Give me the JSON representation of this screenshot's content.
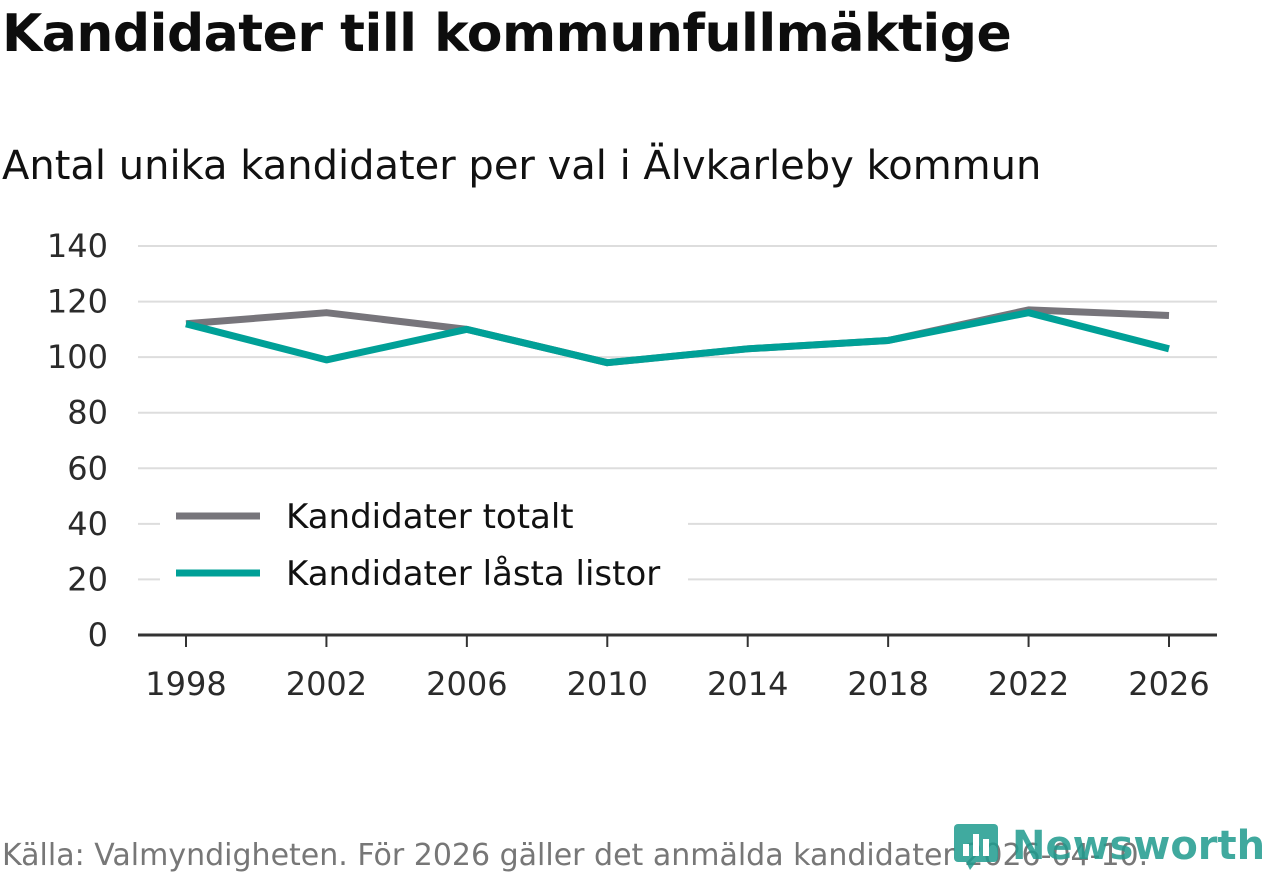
{
  "title": "Kandidater till kommunfullmäktige",
  "subtitle": "Antal unika kandidater per val i Älvkarleby kommun",
  "footer": "Källa: Valmyndigheten. För 2026 gäller det anmälda kandidater 2026-04-10.",
  "brand": "Newsworthy",
  "colors": {
    "total": "#77757b",
    "locked": "#00a097",
    "grid": "#dddddd",
    "axis": "#333333"
  },
  "chart_data": {
    "type": "line",
    "title": "Kandidater till kommunfullmäktige",
    "subtitle": "Antal unika kandidater per val i Älvkarleby kommun",
    "xlabel": "",
    "ylabel": "",
    "x": [
      "1998",
      "2002",
      "2006",
      "2010",
      "2014",
      "2018",
      "2022",
      "2026"
    ],
    "ylim": [
      0,
      140
    ],
    "yticks": [
      0,
      20,
      40,
      60,
      80,
      100,
      120,
      140
    ],
    "grid": true,
    "legend_position": "bottom-left",
    "series": [
      {
        "name": "Kandidater totalt",
        "values": [
          112,
          116,
          110,
          98,
          103,
          106,
          117,
          115
        ]
      },
      {
        "name": "Kandidater låsta listor",
        "values": [
          112,
          99,
          110,
          98,
          103,
          106,
          116,
          103
        ]
      }
    ]
  }
}
